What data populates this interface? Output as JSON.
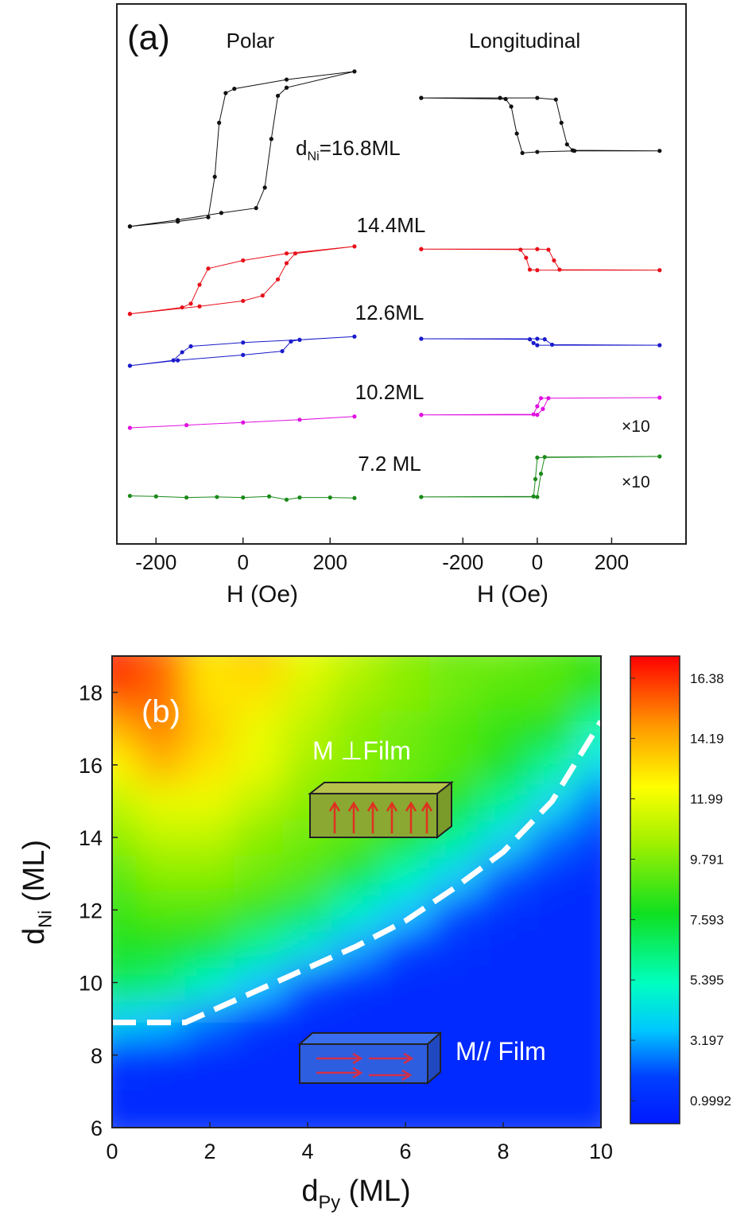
{
  "chart_data": [
    {
      "type": "line",
      "title": "Polar",
      "xlabel": "H (Oe)",
      "xlim": [
        -290,
        300
      ],
      "xticks": [
        -200,
        0,
        200
      ],
      "ylim": [
        0,
        100
      ],
      "annotations": [
        {
          "text": "(a)"
        },
        {
          "parts": [
            "d",
            "Ni",
            "=16.8ML"
          ]
        },
        {
          "text": "14.4ML"
        },
        {
          "text": "12.6ML"
        },
        {
          "text": "10.2ML"
        },
        {
          "text": "7.2 ML"
        }
      ],
      "series": [
        {
          "color": "#111111",
          "x": [
            -260,
            -150,
            -50,
            30,
            50,
            65,
            80,
            100,
            256,
            100,
            -20,
            -40,
            -55,
            -65,
            -80,
            -150,
            -260
          ],
          "values": [
            58.8,
            60,
            61.3,
            62.2,
            66,
            75,
            83,
            84.5,
            87.5,
            86,
            84.3,
            83.5,
            78,
            68,
            60.5,
            59.7,
            58.8
          ]
        },
        {
          "color": "#e8101a",
          "x": [
            -260,
            -100,
            0,
            45,
            80,
            100,
            120,
            256,
            100,
            0,
            -80,
            -100,
            -120,
            -140,
            -260
          ],
          "values": [
            42.6,
            44,
            45,
            46,
            49,
            52,
            53.8,
            55.1,
            53.8,
            52.5,
            51,
            48,
            44.5,
            43.8,
            42.6
          ]
        },
        {
          "color": "#1a1acc",
          "x": [
            -260,
            -150,
            0,
            90,
            110,
            130,
            256,
            130,
            0,
            -120,
            -140,
            -160,
            -260
          ],
          "values": [
            33,
            34,
            35,
            35.7,
            37.5,
            37.8,
            38.4,
            37.8,
            37.3,
            36.6,
            35.5,
            34,
            33
          ]
        },
        {
          "color": "#e010e0",
          "x": [
            -260,
            -130,
            0,
            130,
            256
          ],
          "values": [
            21.5,
            22,
            22.5,
            23,
            23.6
          ]
        },
        {
          "color": "#1a8a1a",
          "x": [
            -260,
            -200,
            -130,
            -60,
            0,
            60,
            100,
            130,
            200,
            256
          ],
          "values": [
            8.9,
            8.8,
            8.6,
            8.7,
            8.6,
            8.8,
            8.2,
            8.6,
            8.6,
            8.5
          ]
        }
      ]
    },
    {
      "type": "line",
      "title": "Longitudinal",
      "xlabel": "H (Oe)",
      "xlim": [
        -440,
        400
      ],
      "xticks": [
        -200,
        0,
        200
      ],
      "ylim": [
        0,
        100
      ],
      "annotations": [
        {
          "text": "×10"
        },
        {
          "text": "×10"
        }
      ],
      "series": [
        {
          "color": "#111111",
          "x": [
            -312,
            -100,
            0,
            50,
            65,
            80,
            95,
            329,
            100,
            0,
            -40,
            -55,
            -70,
            -85,
            -312
          ],
          "values": [
            82.6,
            82.6,
            82.6,
            82.3,
            78,
            74,
            72.9,
            72.8,
            72.8,
            72.6,
            72.4,
            76,
            81,
            82.4,
            82.6
          ]
        },
        {
          "color": "#e8101a",
          "x": [
            -312,
            0,
            30,
            45,
            60,
            329,
            0,
            -20,
            -30,
            -45,
            -312
          ],
          "values": [
            54.6,
            54.6,
            54.5,
            52.5,
            50.8,
            50.7,
            50.7,
            50.8,
            53,
            54.5,
            54.6
          ]
        },
        {
          "color": "#1a1acc",
          "x": [
            -312,
            0,
            20,
            40,
            329,
            0,
            -10,
            -20,
            -312
          ],
          "values": [
            38,
            38,
            37.9,
            36.9,
            36.8,
            36.8,
            37.2,
            37.9,
            38
          ]
        },
        {
          "color": "#e010e0",
          "x": [
            -312,
            0,
            15,
            30,
            329,
            10,
            0,
            -10,
            -312
          ],
          "values": [
            23.9,
            23.9,
            25,
            27,
            27.1,
            27,
            25.5,
            24,
            23.9
          ]
        },
        {
          "color": "#1a8a1a",
          "x": [
            -312,
            0,
            10,
            20,
            329,
            0,
            -5,
            -10,
            -312
          ],
          "values": [
            8.7,
            8.7,
            13,
            16.1,
            16.2,
            16,
            12,
            8.8,
            8.7
          ]
        }
      ]
    },
    {
      "type": "heatmap",
      "xlabel": [
        "d",
        "Py",
        " (ML)"
      ],
      "ylabel": [
        "d",
        "Ni",
        " (ML)"
      ],
      "xlim": [
        0,
        10
      ],
      "xticks": [
        0,
        2,
        4,
        6,
        8,
        10
      ],
      "ylim": [
        6,
        19
      ],
      "yticks": [
        6,
        8,
        10,
        12,
        14,
        16,
        18
      ],
      "x": [
        0,
        1,
        2,
        3,
        4,
        5,
        6,
        7,
        8,
        9,
        10
      ],
      "y": [
        6,
        7,
        8,
        9,
        10,
        11,
        12,
        13,
        14,
        15,
        16,
        17,
        18,
        19
      ],
      "z": [
        [
          1,
          1,
          1,
          1,
          1,
          1,
          1,
          1,
          1,
          1,
          1
        ],
        [
          1,
          1,
          1,
          1,
          1,
          1,
          1,
          1,
          1,
          1,
          1
        ],
        [
          1.5,
          1.3,
          1,
          1,
          1,
          1,
          1,
          1,
          1,
          1,
          1
        ],
        [
          4,
          3.5,
          2.5,
          1.5,
          1,
          1,
          1,
          1,
          1,
          1,
          1
        ],
        [
          7,
          6.5,
          5,
          3.5,
          2,
          1.2,
          1,
          1,
          1,
          1,
          1
        ],
        [
          8,
          8,
          7.5,
          6,
          4.5,
          3,
          1.8,
          1.2,
          1,
          1,
          1
        ],
        [
          8.5,
          9,
          9,
          8.5,
          7,
          5,
          3.5,
          2,
          1.3,
          1,
          1
        ],
        [
          9,
          10,
          10,
          9.5,
          9,
          7.5,
          5.5,
          3.8,
          2.2,
          1.4,
          1
        ],
        [
          10,
          11,
          11,
          10,
          9.5,
          9,
          8,
          6,
          4,
          2.5,
          1.5
        ],
        [
          11,
          12,
          12,
          11,
          10,
          9.5,
          9,
          8,
          6,
          4,
          2.5
        ],
        [
          12.5,
          14,
          13,
          12,
          10.5,
          10,
          9.5,
          9,
          8,
          6,
          4
        ],
        [
          14,
          15,
          13.5,
          12,
          11,
          10,
          9.5,
          9,
          8.5,
          8,
          5.5
        ],
        [
          16,
          15.5,
          13,
          13,
          11.5,
          10.5,
          10,
          9.5,
          9,
          9,
          8
        ],
        [
          17,
          15.5,
          13,
          13.5,
          12,
          11,
          10,
          9.5,
          9.5,
          9,
          8.5
        ]
      ],
      "clim": [
        0.16,
        17.19
      ],
      "colorbar_ticks": [
        0.9992,
        3.197,
        5.395,
        7.593,
        9.791,
        11.99,
        14.19,
        16.38
      ],
      "colorscale": [
        [
          0,
          "#0019ff"
        ],
        [
          0.1,
          "#0040ff"
        ],
        [
          0.2,
          "#00c8ff"
        ],
        [
          0.3,
          "#00ffc0"
        ],
        [
          0.45,
          "#10e020"
        ],
        [
          0.6,
          "#a0f000"
        ],
        [
          0.72,
          "#ffff00"
        ],
        [
          0.85,
          "#ff9900"
        ],
        [
          1,
          "#ff0000"
        ]
      ],
      "boundary": {
        "color": "#ffffff",
        "x": [
          0,
          1.5,
          3,
          4,
          5,
          6,
          7,
          8,
          9,
          10
        ],
        "y": [
          8.9,
          8.9,
          9.8,
          10.4,
          11,
          11.7,
          12.6,
          13.6,
          15,
          17.2
        ]
      },
      "annotations": [
        {
          "text": "(b)"
        },
        {
          "text": "M  ⊥Film"
        },
        {
          "text": "M// Film"
        }
      ]
    }
  ]
}
